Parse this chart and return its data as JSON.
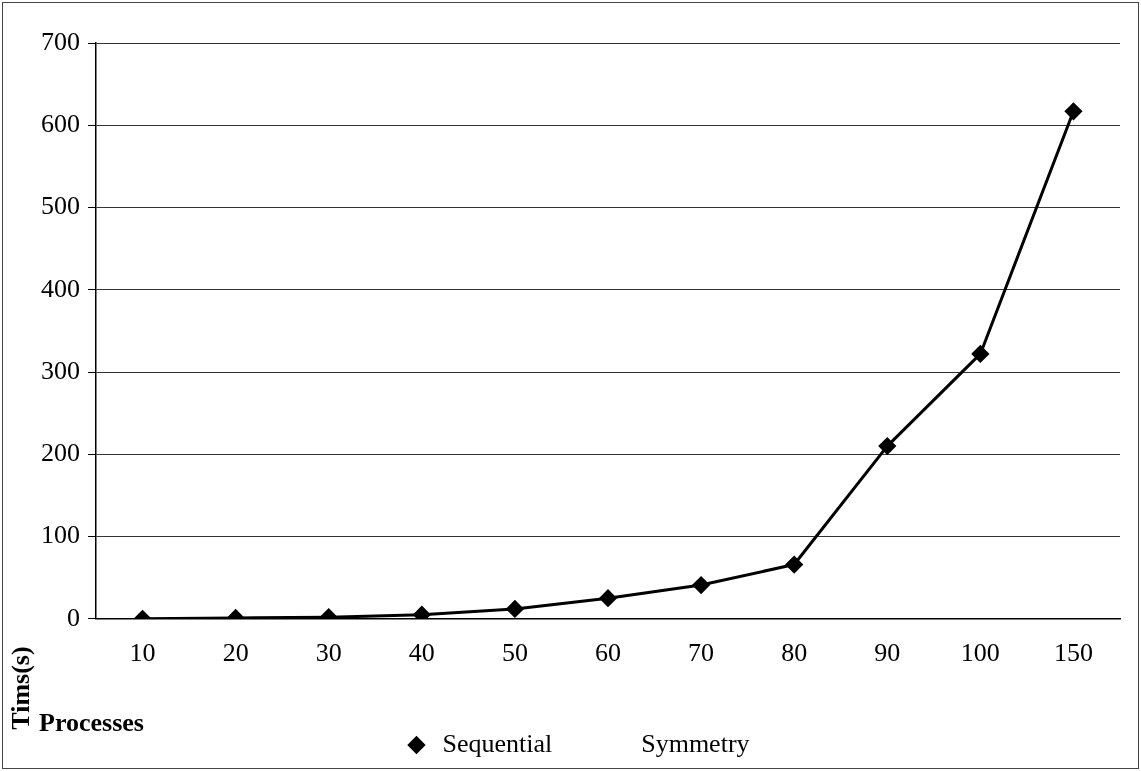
{
  "chart_data": {
    "type": "line",
    "xlabel": "Processes",
    "ylabel": "Tims(s)",
    "categories": [
      "10",
      "20",
      "30",
      "40",
      "50",
      "60",
      "70",
      "80",
      "90",
      "100",
      "150"
    ],
    "series": [
      {
        "name": "Sequential",
        "color": "#000000",
        "marker": "diamond",
        "values": [
          0,
          1,
          2,
          5,
          12,
          25,
          41,
          66,
          210,
          322,
          617
        ]
      },
      {
        "name": "Symmetry",
        "marker": "none",
        "values": [
          null,
          null,
          null,
          null,
          null,
          null,
          null,
          null,
          null,
          null,
          null
        ]
      }
    ],
    "ylim": [
      0,
      700
    ],
    "yticks": [
      0,
      100,
      200,
      300,
      400,
      500,
      600,
      700
    ],
    "grid": "y",
    "legend": "bottom"
  }
}
